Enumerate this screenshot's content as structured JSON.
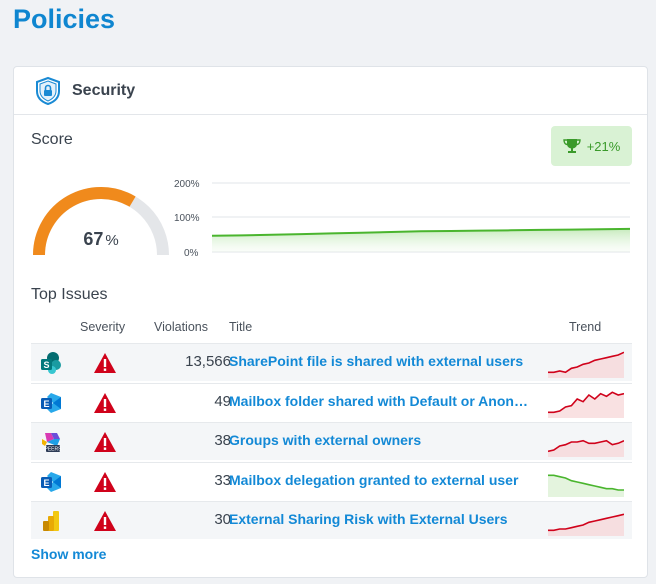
{
  "page": {
    "title": "Policies"
  },
  "card": {
    "title": "Security",
    "score_label": "Score",
    "score_value": "67",
    "score_unit": "%",
    "score_fraction": 0.67,
    "trend_badge": "+21%",
    "spark_axis": [
      "200%",
      "100%",
      "0%"
    ],
    "spark_values": [
      47,
      48,
      50,
      52,
      54,
      56,
      58,
      60,
      61,
      62,
      63,
      64,
      65,
      66,
      67
    ],
    "top_issues_label": "Top Issues",
    "columns": {
      "severity": "Severity",
      "violations": "Violations",
      "title": "Title",
      "trend": "Trend"
    },
    "issues": [
      {
        "icon": "sharepoint-icon",
        "violations": "13,566",
        "title": "SharePoint file is shared with external users",
        "trend_color": "#d0021b",
        "trend": [
          2,
          2,
          3,
          2,
          5,
          6,
          8,
          9,
          11,
          12,
          13,
          14,
          15,
          17
        ]
      },
      {
        "icon": "exchange-icon",
        "violations": "49",
        "title": "Mailbox folder shared with Default or Anonymous",
        "trend_color": "#d0021b",
        "trend": [
          2,
          2,
          3,
          6,
          7,
          12,
          10,
          15,
          12,
          16,
          14,
          17,
          15,
          16
        ]
      },
      {
        "icon": "m365-groups-icon",
        "violations": "38",
        "title": "Groups with external owners",
        "trend_color": "#d0021b",
        "trend": [
          2,
          3,
          6,
          7,
          9,
          9,
          10,
          8,
          8,
          9,
          10,
          7,
          8,
          10
        ]
      },
      {
        "icon": "exchange-icon",
        "violations": "33",
        "title": "Mailbox delegation granted to external user",
        "trend_color": "#4ab52e",
        "trend": [
          14,
          14,
          13,
          12,
          10,
          9,
          8,
          7,
          6,
          5,
          4,
          4,
          3,
          3
        ]
      },
      {
        "icon": "power-bi-icon",
        "violations": "30",
        "title": "External Sharing Risk with External Users",
        "trend_color": "#d0021b",
        "trend": [
          2,
          2,
          3,
          3,
          4,
          5,
          6,
          8,
          9,
          10,
          11,
          12,
          13,
          14
        ]
      }
    ],
    "show_more": "Show more"
  }
}
